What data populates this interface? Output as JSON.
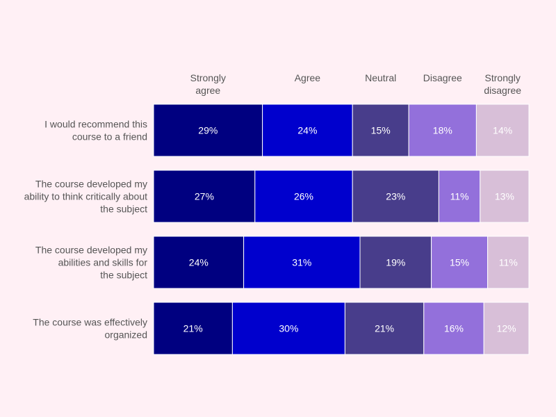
{
  "colors": {
    "background": "#fff0f5",
    "segments": [
      "#000080",
      "#0000cd",
      "#483d8b",
      "#9370db",
      "#d8bfd8"
    ]
  },
  "chart_data": {
    "type": "bar",
    "orientation": "horizontal",
    "stacked": "percent",
    "title": "",
    "xlabel": "",
    "ylabel": "",
    "legend": "top",
    "grid": false,
    "series_names": [
      "Strongly agree",
      "Agree",
      "Neutral",
      "Disagree",
      "Strongly disagree"
    ],
    "categories": [
      "I would recommend this course to a friend",
      "The course developed my ability to think critically about the subject",
      "The course developed my abilities and skills for the subject",
      "The course was effectively organized"
    ],
    "category_lines": [
      [
        "I would recommend this",
        "course to a friend"
      ],
      [
        "The course developed my",
        "ability to think critically about",
        "the subject"
      ],
      [
        "The course developed my",
        "abilities and skills for",
        "the subject"
      ],
      [
        "The course was effectively",
        "organized"
      ]
    ],
    "values": [
      [
        29,
        24,
        15,
        18,
        14
      ],
      [
        27,
        26,
        23,
        11,
        13
      ],
      [
        24,
        31,
        19,
        15,
        11
      ],
      [
        21,
        30,
        21,
        16,
        12
      ]
    ],
    "value_suffix": "%"
  }
}
